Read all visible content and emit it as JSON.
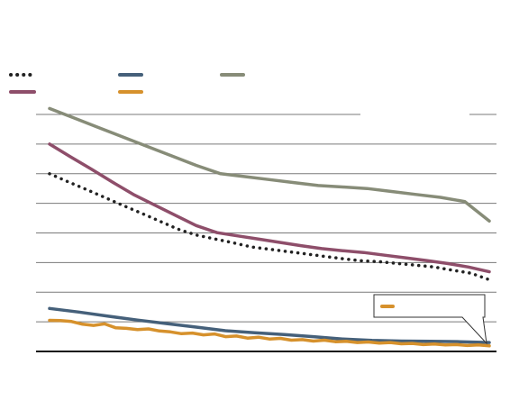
{
  "chart_data": {
    "type": "line",
    "title": "",
    "xlabel": "",
    "ylabel": "",
    "ylim": [
      0,
      8
    ],
    "grid": true,
    "legend": "top-left",
    "series": [
      {
        "style": "dotted",
        "color": "#222222",
        "points": [
          [
            0,
            6
          ],
          [
            1,
            5.73
          ],
          [
            2,
            5.47
          ],
          [
            3,
            5.2
          ],
          [
            4,
            4.93
          ],
          [
            5,
            4.67
          ],
          [
            6,
            4.4
          ],
          [
            7,
            4.13
          ],
          [
            8,
            3.93
          ],
          [
            9,
            3.8
          ],
          [
            10,
            3.67
          ],
          [
            11,
            3.53
          ],
          [
            12,
            3.45
          ],
          [
            13,
            3.37
          ],
          [
            14,
            3.29
          ],
          [
            15,
            3.21
          ],
          [
            16,
            3.13
          ],
          [
            17,
            3.06
          ],
          [
            18,
            3.03
          ],
          [
            19,
            2.97
          ],
          [
            20,
            2.91
          ],
          [
            21,
            2.85
          ],
          [
            22,
            2.74
          ],
          [
            23,
            2.64
          ],
          [
            24,
            2.42
          ]
        ]
      },
      {
        "style": "solid",
        "color": "#45607a",
        "points": [
          [
            0,
            1.45
          ],
          [
            2,
            1.33
          ],
          [
            4,
            1.19
          ],
          [
            6,
            1.06
          ],
          [
            8,
            0.94
          ],
          [
            10,
            0.82
          ],
          [
            12,
            0.7
          ],
          [
            14,
            0.63
          ],
          [
            16,
            0.57
          ],
          [
            18,
            0.5
          ],
          [
            20,
            0.42
          ],
          [
            22,
            0.37
          ],
          [
            24,
            0.35
          ],
          [
            26,
            0.34
          ],
          [
            28,
            0.33
          ],
          [
            30,
            0.3
          ]
        ]
      },
      {
        "style": "solid",
        "color": "#878c78",
        "points": [
          [
            0,
            8.2
          ],
          [
            1,
            7.88
          ],
          [
            2,
            7.56
          ],
          [
            3,
            7.24
          ],
          [
            4,
            6.92
          ],
          [
            5,
            6.6
          ],
          [
            6,
            6.28
          ],
          [
            7,
            6
          ],
          [
            8,
            5.9
          ],
          [
            9,
            5.8
          ],
          [
            10,
            5.7
          ],
          [
            11,
            5.6
          ],
          [
            12,
            5.55
          ],
          [
            13,
            5.5
          ],
          [
            14,
            5.4
          ],
          [
            15,
            5.3
          ],
          [
            16,
            5.2
          ],
          [
            17,
            5.06
          ],
          [
            18,
            4.4
          ]
        ]
      },
      {
        "style": "solid",
        "color": "#8e4e6a",
        "points": [
          [
            0,
            7
          ],
          [
            1,
            6.57
          ],
          [
            2,
            6.15
          ],
          [
            3,
            5.72
          ],
          [
            4,
            5.3
          ],
          [
            5,
            4.95
          ],
          [
            6,
            4.6
          ],
          [
            7,
            4.25
          ],
          [
            8,
            4.01
          ],
          [
            9,
            3.9
          ],
          [
            10,
            3.79
          ],
          [
            11,
            3.68
          ],
          [
            12,
            3.57
          ],
          [
            13,
            3.47
          ],
          [
            14,
            3.4
          ],
          [
            15,
            3.34
          ],
          [
            16,
            3.25
          ],
          [
            17,
            3.16
          ],
          [
            18,
            3.07
          ],
          [
            19,
            2.97
          ],
          [
            20,
            2.85
          ],
          [
            21,
            2.69
          ]
        ]
      },
      {
        "style": "solid",
        "color": "#d6912c",
        "points": [
          [
            0,
            1.05
          ],
          [
            1,
            1.04
          ],
          [
            2,
            1.01
          ],
          [
            3,
            0.92
          ],
          [
            4,
            0.88
          ],
          [
            5,
            0.93
          ],
          [
            6,
            0.8
          ],
          [
            7,
            0.78
          ],
          [
            8,
            0.74
          ],
          [
            9,
            0.76
          ],
          [
            10,
            0.69
          ],
          [
            11,
            0.66
          ],
          [
            12,
            0.6
          ],
          [
            13,
            0.62
          ],
          [
            14,
            0.56
          ],
          [
            15,
            0.59
          ],
          [
            16,
            0.5
          ],
          [
            17,
            0.52
          ],
          [
            18,
            0.45
          ],
          [
            19,
            0.48
          ],
          [
            20,
            0.42
          ],
          [
            21,
            0.44
          ],
          [
            22,
            0.38
          ],
          [
            23,
            0.4
          ],
          [
            24,
            0.35
          ],
          [
            25,
            0.38
          ],
          [
            26,
            0.33
          ],
          [
            27,
            0.34
          ],
          [
            28,
            0.3
          ],
          [
            29,
            0.32
          ],
          [
            30,
            0.28
          ],
          [
            31,
            0.3
          ],
          [
            32,
            0.26
          ],
          [
            33,
            0.27
          ],
          [
            34,
            0.23
          ],
          [
            35,
            0.25
          ],
          [
            36,
            0.22
          ],
          [
            37,
            0.23
          ],
          [
            38,
            0.2
          ],
          [
            39,
            0.22
          ],
          [
            40,
            0.19
          ]
        ]
      }
    ]
  }
}
